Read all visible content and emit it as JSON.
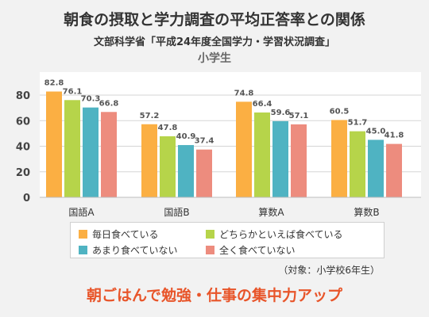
{
  "title": "朝食の摂取と学力調査の平均正答率との関係",
  "subtitle": "文部科学省「平成24年度全国学力・学習状況調査」",
  "subtitle2": "小学生",
  "note": "（対象：小学校6年生）",
  "footer": "朝ごはんで勉強・仕事の集中力アップ",
  "chart_data": {
    "type": "bar",
    "title": "朝食の摂取と学力調査の平均正答率との関係",
    "categories": [
      "国語A",
      "国語B",
      "算数A",
      "算数B"
    ],
    "ylim": [
      0,
      80
    ],
    "yticks": [
      0,
      20,
      40,
      60,
      80
    ],
    "grid": true,
    "legend_position": "bottom",
    "series": [
      {
        "name": "毎日食べている",
        "color": "#fbaf43",
        "values": [
          82.8,
          57.2,
          74.8,
          60.5
        ]
      },
      {
        "name": "どちらかといえば食べている",
        "color": "#b6d44a",
        "values": [
          76.1,
          47.8,
          66.4,
          51.7
        ]
      },
      {
        "name": "あまり食べていない",
        "color": "#4fb3c2",
        "values": [
          70.3,
          40.9,
          59.6,
          45.0
        ]
      },
      {
        "name": "全く食べていない",
        "color": "#ed8c7e",
        "values": [
          66.8,
          37.4,
          57.1,
          41.8
        ]
      }
    ],
    "value_labels": [
      [
        "82.8",
        "57.2",
        "74.8",
        "60.5"
      ],
      [
        "76.1",
        "47.8",
        "66.4",
        "51.7"
      ],
      [
        "70.3",
        "40.9",
        "59.6",
        "45.0"
      ],
      [
        "66.8",
        "37.4",
        "57.1",
        "41.8"
      ]
    ]
  }
}
